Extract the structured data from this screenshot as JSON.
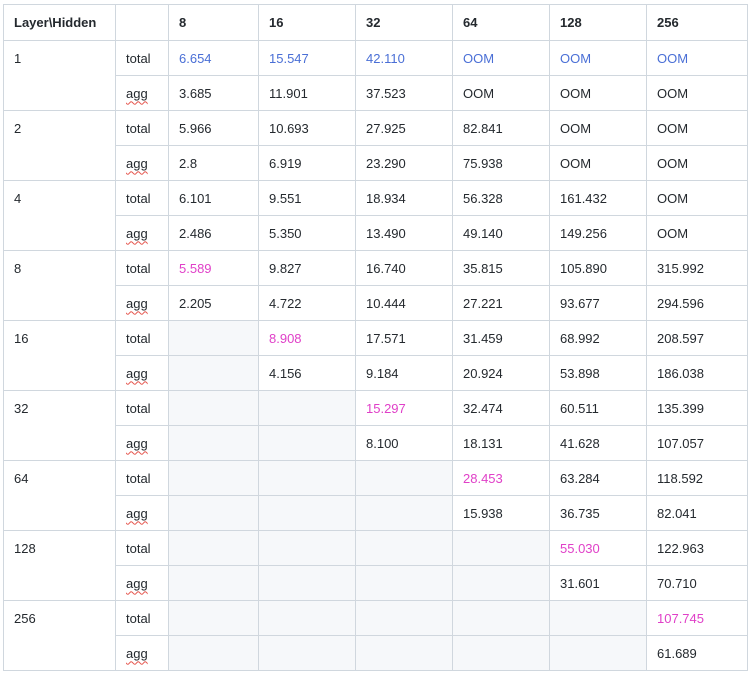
{
  "colors": {
    "blue": "#4a6fd6",
    "pink": "#e040c8",
    "empty_cell": "#f6f8fa",
    "border": "#d0d7de"
  },
  "header": [
    "Layer\\Hidden",
    "",
    "8",
    "16",
    "32",
    "64",
    "128",
    "256"
  ],
  "rows": [
    {
      "layer": "1",
      "total": [
        "6.654",
        "15.547",
        "42.110",
        "OOM",
        "OOM",
        "OOM"
      ],
      "agg": [
        "3.685",
        "11.901",
        "37.523",
        "OOM",
        "OOM",
        "OOM"
      ]
    },
    {
      "layer": "2",
      "total": [
        "5.966",
        "10.693",
        "27.925",
        "82.841",
        "OOM",
        "OOM"
      ],
      "agg": [
        "2.8",
        "6.919",
        "23.290",
        "75.938",
        "OOM",
        "OOM"
      ]
    },
    {
      "layer": "4",
      "total": [
        "6.101",
        "9.551",
        "18.934",
        "56.328",
        "161.432",
        "OOM"
      ],
      "agg": [
        "2.486",
        "5.350",
        "13.490",
        "49.140",
        "149.256",
        "OOM"
      ]
    },
    {
      "layer": "8",
      "total": [
        "5.589",
        "9.827",
        "16.740",
        "35.815",
        "105.890",
        "315.992"
      ],
      "agg": [
        "2.205",
        "4.722",
        "10.444",
        "27.221",
        "93.677",
        "294.596"
      ]
    },
    {
      "layer": "16",
      "total": [
        "",
        "8.908",
        "17.571",
        "31.459",
        "68.992",
        "208.597"
      ],
      "agg": [
        "",
        "4.156",
        "9.184",
        "20.924",
        "53.898",
        "186.038"
      ]
    },
    {
      "layer": "32",
      "total": [
        "",
        "",
        "15.297",
        "32.474",
        "60.511",
        "135.399"
      ],
      "agg": [
        "",
        "",
        "8.100",
        "18.131",
        "41.628",
        "107.057"
      ]
    },
    {
      "layer": "64",
      "total": [
        "",
        "",
        "",
        "28.453",
        "63.284",
        "118.592"
      ],
      "agg": [
        "",
        "",
        "",
        "15.938",
        "36.735",
        "82.041"
      ]
    },
    {
      "layer": "128",
      "total": [
        "",
        "",
        "",
        "",
        "55.030",
        " 122.963"
      ],
      "agg": [
        "",
        "",
        "",
        "",
        "31.601",
        "70.710"
      ]
    },
    {
      "layer": "256",
      "total": [
        "",
        "",
        "",
        "",
        "",
        "107.745"
      ],
      "agg": [
        "",
        "",
        "",
        "",
        "",
        "61.689"
      ]
    }
  ],
  "labels": {
    "total": "total",
    "agg": "agg"
  },
  "highlights": {
    "blue": [
      [
        0,
        0
      ],
      [
        0,
        1
      ],
      [
        0,
        2
      ],
      [
        0,
        3
      ],
      [
        0,
        4
      ],
      [
        0,
        5
      ]
    ],
    "pink": [
      [
        3,
        0
      ],
      [
        4,
        1
      ],
      [
        5,
        2
      ],
      [
        6,
        3
      ],
      [
        7,
        4
      ],
      [
        8,
        5
      ]
    ]
  },
  "empty_from": {
    "4": 1,
    "5": 2,
    "6": 3,
    "7": 4,
    "8": 5
  }
}
